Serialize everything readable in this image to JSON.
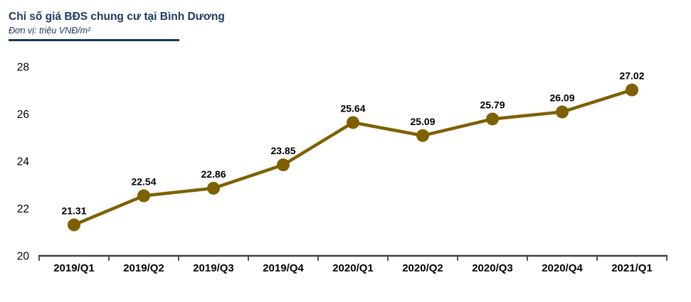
{
  "header": {
    "title": "Chỉ số giá BĐS chung cư tại Bình Dương",
    "subtitle": "Đơn vị: triệu VNĐ/m²"
  },
  "chart_data": {
    "type": "line",
    "title": "Chỉ số giá BĐS chung cư tại Bình Dương",
    "unit_label": "Đơn vị: triệu VNĐ/m²",
    "categories": [
      "2019/Q1",
      "2019/Q2",
      "2019/Q3",
      "2019/Q4",
      "2020/Q1",
      "2020/Q2",
      "2020/Q3",
      "2020/Q4",
      "2021/Q1"
    ],
    "values": [
      21.31,
      22.54,
      22.86,
      23.85,
      25.64,
      25.09,
      25.79,
      26.09,
      27.02
    ],
    "xlabel": "",
    "ylabel": "triệu VNĐ/m²",
    "ylim": [
      20,
      28
    ],
    "yticks": [
      20,
      22,
      24,
      26,
      28
    ],
    "grid": false,
    "legend": "none",
    "marker": "circle",
    "data_labels": true,
    "colors": {
      "line": "#7F6000",
      "marker": "#7F6000",
      "title": "#1F3864",
      "rule": "#17375D",
      "axis": "#404040",
      "text": "#000000"
    }
  }
}
